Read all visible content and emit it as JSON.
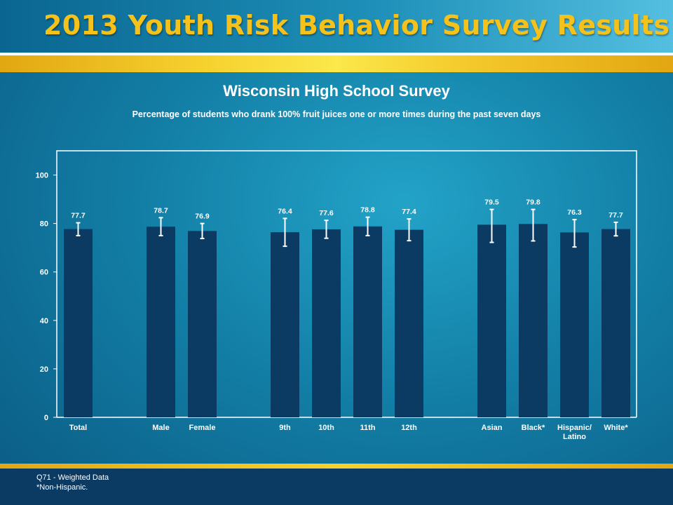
{
  "header": {
    "title": "2013 Youth Risk Behavior Survey Results"
  },
  "colors": {
    "bar": "#0b3a63",
    "gold": "#f5c21b",
    "frame": "#ffffff"
  },
  "chart_data": {
    "type": "bar",
    "title": "Wisconsin High School Survey",
    "subtitle": "Percentage of students who drank 100% fruit juices one or more times during the past seven days",
    "xlabel": "",
    "ylabel": "",
    "ylim": [
      0,
      110
    ],
    "yticks": [
      0,
      20,
      40,
      60,
      80,
      100
    ],
    "grid": false,
    "groups": [
      {
        "categories": [
          {
            "label": [
              "Total"
            ],
            "value": 77.7,
            "value_label": "77.7",
            "ci": [
              75.0,
              80.3
            ]
          }
        ]
      },
      {
        "categories": [
          {
            "label": [
              "Male"
            ],
            "value": 78.7,
            "value_label": "78.7",
            "ci": [
              75.0,
              82.4
            ]
          },
          {
            "label": [
              "Female"
            ],
            "value": 76.9,
            "value_label": "76.9",
            "ci": [
              73.8,
              80.0
            ]
          }
        ]
      },
      {
        "categories": [
          {
            "label": [
              "9th"
            ],
            "value": 76.4,
            "value_label": "76.4",
            "ci": [
              70.6,
              82.1
            ]
          },
          {
            "label": [
              "10th"
            ],
            "value": 77.6,
            "value_label": "77.6",
            "ci": [
              73.9,
              81.3
            ]
          },
          {
            "label": [
              "11th"
            ],
            "value": 78.8,
            "value_label": "78.8",
            "ci": [
              75.0,
              82.6
            ]
          },
          {
            "label": [
              "12th"
            ],
            "value": 77.4,
            "value_label": "77.4",
            "ci": [
              72.9,
              81.9
            ]
          }
        ]
      },
      {
        "categories": [
          {
            "label": [
              "Asian"
            ],
            "value": 79.5,
            "value_label": "79.5",
            "ci": [
              72.2,
              85.8
            ]
          },
          {
            "label": [
              "Black*"
            ],
            "value": 79.8,
            "value_label": "79.8",
            "ci": [
              72.8,
              85.8
            ]
          },
          {
            "label": [
              "Hispanic/",
              "Latino"
            ],
            "value": 76.3,
            "value_label": "76.3",
            "ci": [
              70.3,
              81.6
            ]
          },
          {
            "label": [
              "White*"
            ],
            "value": 77.7,
            "value_label": "77.7",
            "ci": [
              74.9,
              80.5
            ]
          }
        ]
      }
    ]
  },
  "footnotes": {
    "line1": "Q71 - Weighted Data",
    "line2": "*Non-Hispanic."
  }
}
